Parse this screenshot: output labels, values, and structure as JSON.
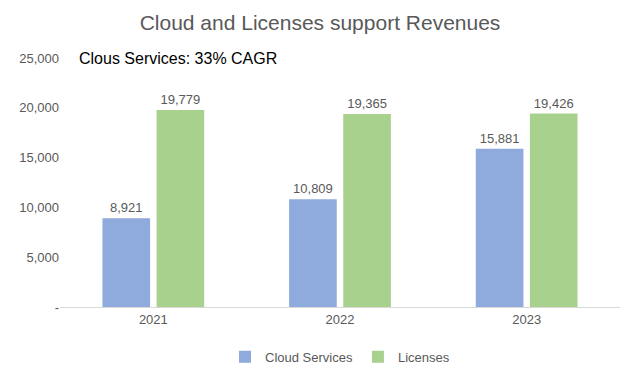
{
  "chart_data": {
    "type": "bar",
    "title": "Cloud and Licenses support Revenues",
    "annotations": [
      "Clous Services: 33% CAGR"
    ],
    "categories": [
      "2021",
      "2022",
      "2023"
    ],
    "series": [
      {
        "name": "Cloud Services",
        "color": "#8faadc",
        "values": [
          8921,
          10809,
          15881
        ],
        "value_labels": [
          "8,921",
          "10,809",
          "15,881"
        ]
      },
      {
        "name": "Licenses",
        "color": "#a9d18e",
        "values": [
          19779,
          19365,
          19426
        ],
        "value_labels": [
          "19,779",
          "19,365",
          "19,426"
        ]
      }
    ],
    "ylim": [
      0,
      25000
    ],
    "yticks": [
      {
        "value": 0,
        "label": "-"
      },
      {
        "value": 5000,
        "label": "5,000"
      },
      {
        "value": 10000,
        "label": "10,000"
      },
      {
        "value": 15000,
        "label": "15,000"
      },
      {
        "value": 20000,
        "label": "20,000"
      },
      {
        "value": 25000,
        "label": "25,000"
      }
    ],
    "grid": false,
    "legend": "bottom",
    "data_labels": true
  }
}
